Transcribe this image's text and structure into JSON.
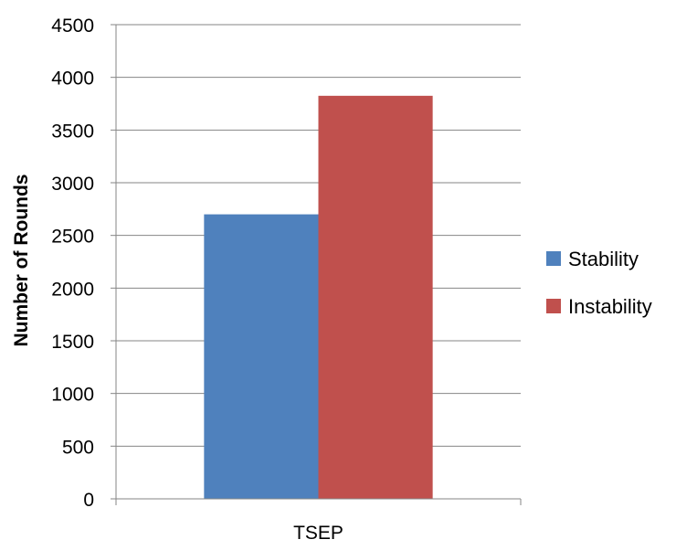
{
  "chart_data": {
    "type": "bar",
    "categories": [
      "TSEP"
    ],
    "series": [
      {
        "name": "Stability",
        "values": [
          2700
        ],
        "color": "#4f81bd"
      },
      {
        "name": "Instability",
        "values": [
          3825
        ],
        "color": "#c0504d"
      }
    ],
    "title": "",
    "xlabel": "",
    "ylabel": "Number of Rounds",
    "ylim": [
      0,
      4500
    ],
    "yticks": [
      0,
      500,
      1000,
      1500,
      2000,
      2500,
      3000,
      3500,
      4000,
      4500
    ],
    "grid": true,
    "legend_position": "right"
  }
}
